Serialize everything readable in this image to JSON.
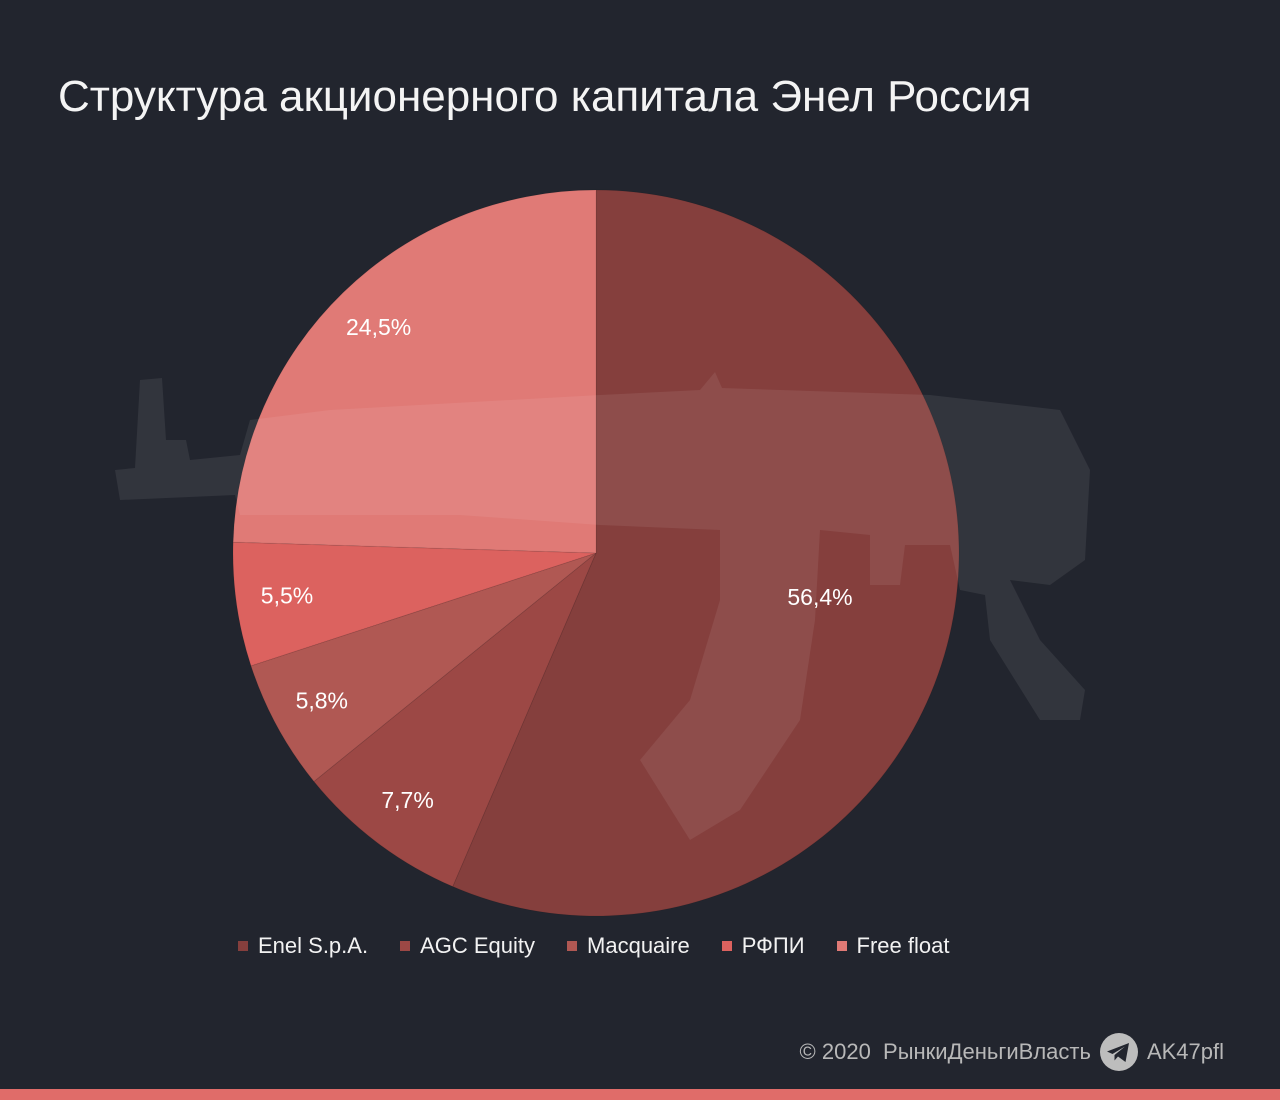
{
  "chart_data": {
    "type": "pie",
    "title": "Структура акционерного капитала Энел Россия",
    "direction": "clockwise",
    "legend_position": "bottom",
    "slices": [
      {
        "name": "Enel S.p.A.",
        "value": 56.4,
        "label": "56,4%",
        "color": "#853f3d"
      },
      {
        "name": "AGC Equity",
        "value": 7.7,
        "label": "7,7%",
        "color": "#9c4845"
      },
      {
        "name": "Macquaire",
        "value": 5.8,
        "label": "5,8%",
        "color": "#b05853"
      },
      {
        "name": "РФПИ",
        "value": 5.5,
        "label": "5,5%",
        "color": "#dc625f"
      },
      {
        "name": "Free float",
        "value": 24.5,
        "label": "24,5%",
        "color": "#e07a76"
      }
    ]
  },
  "footer": {
    "copyright": "© 2020  РынкиДеньгиВласть",
    "handle": "AK47pfl",
    "icon": "telegram-icon"
  },
  "colors": {
    "background": "#22252e",
    "accent_strip": "#e06c69"
  }
}
